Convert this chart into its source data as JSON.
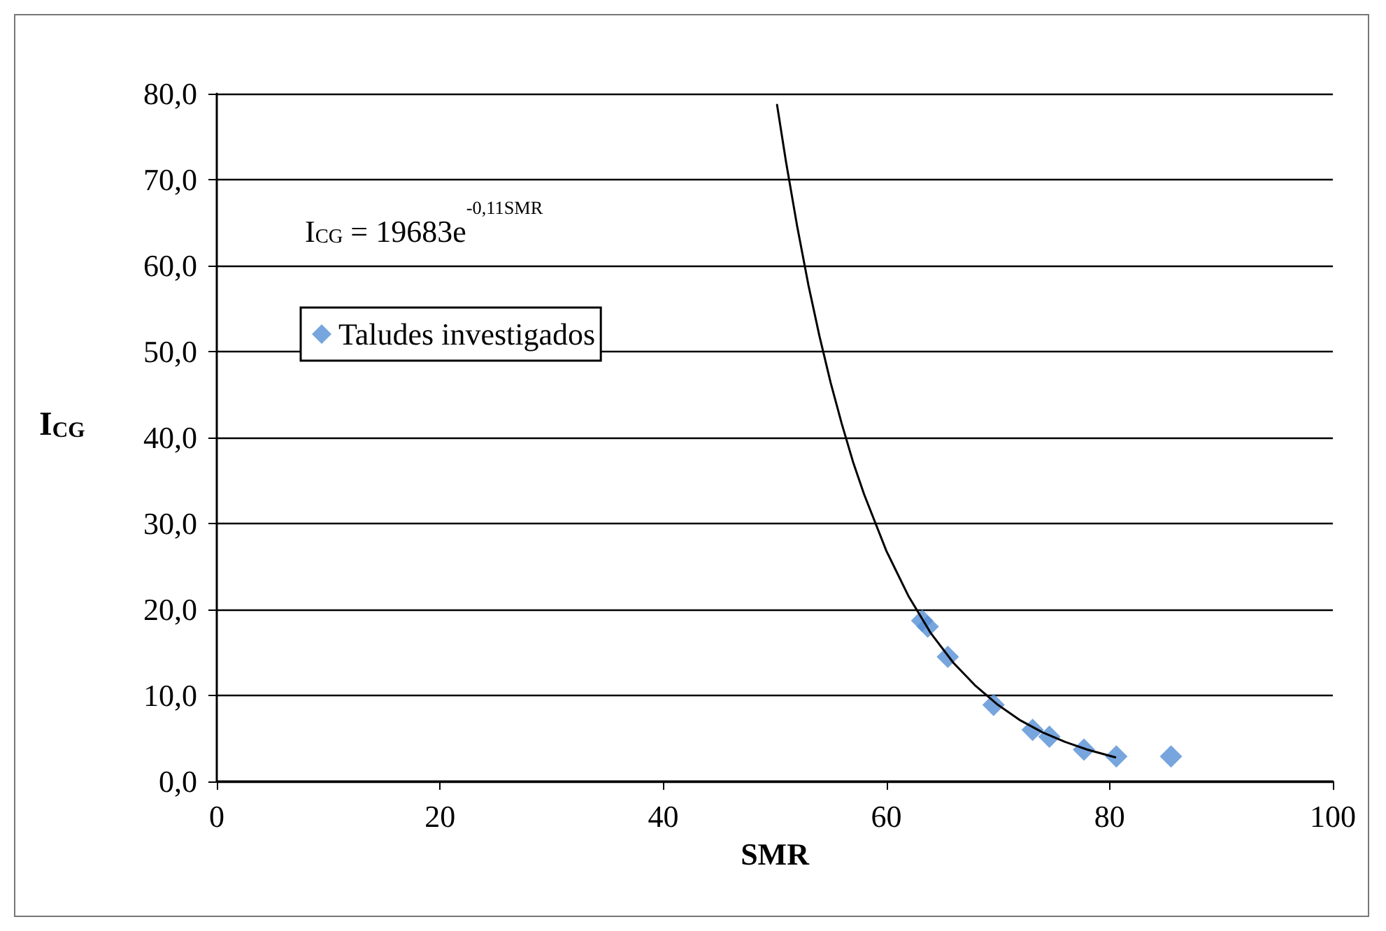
{
  "chart_data": {
    "type": "scatter",
    "xlabel": "SMR",
    "ylabel": "I$_{CG}$",
    "annotations": [
      "I$_{CG}$ = 19683e$^{-0,11SMR}$"
    ],
    "xlim": [
      0,
      100
    ],
    "xticks": [
      0,
      20,
      40,
      60,
      80,
      100
    ],
    "ylim": [
      0,
      80
    ],
    "yticks": [
      {
        "value": 0,
        "label": "0,0"
      },
      {
        "value": 10,
        "label": "10,0"
      },
      {
        "value": 20,
        "label": "20,0"
      },
      {
        "value": 30,
        "label": "30,0"
      },
      {
        "value": 40,
        "label": "40,0"
      },
      {
        "value": 50,
        "label": "50,0"
      },
      {
        "value": 60,
        "label": "60,0"
      },
      {
        "value": 70,
        "label": "70,0"
      },
      {
        "value": 80,
        "label": "80,0"
      }
    ],
    "grid": "y",
    "legend": "top left",
    "series": [
      {
        "name": "Taludes investigados",
        "marker": "diamond",
        "color": "#558ed5",
        "x": [
          63.2,
          63.7,
          65.5,
          69.6,
          73.1,
          74.6,
          77.7,
          80.6,
          85.5
        ],
        "values": [
          18.7,
          18.0,
          14.5,
          8.9,
          6.0,
          5.2,
          3.7,
          2.9,
          2.9
        ]
      },
      {
        "type": "line",
        "marker": "none",
        "color": "#000000",
        "x": [
          50.2,
          51,
          52,
          53,
          54,
          55,
          56,
          57,
          58,
          60,
          62,
          64,
          66,
          68,
          70,
          72,
          74,
          76,
          78,
          80.5
        ],
        "values": [
          78.7,
          72.1,
          64.6,
          57.8,
          51.8,
          46.4,
          41.6,
          37.2,
          33.4,
          26.8,
          21.5,
          17.2,
          13.8,
          11.1,
          8.9,
          7.1,
          5.7,
          4.6,
          3.7,
          2.8
        ]
      }
    ]
  }
}
